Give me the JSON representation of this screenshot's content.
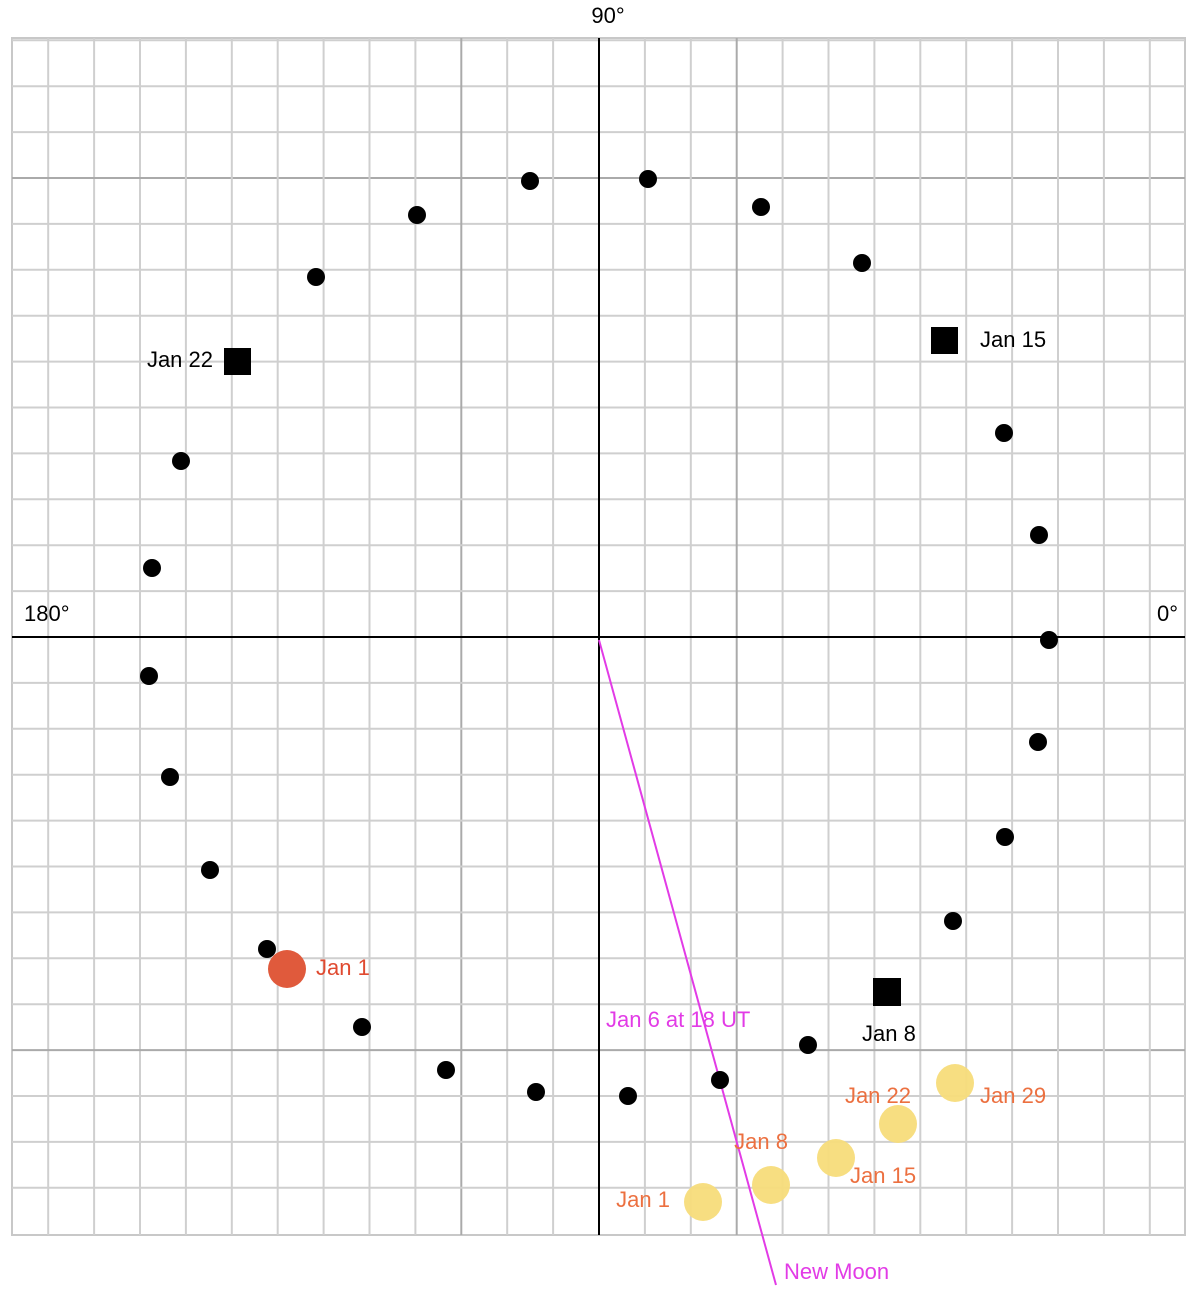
{
  "axes": {
    "top": "90°",
    "left": "180°",
    "right": "0°"
  },
  "moon_markers": [
    {
      "label": "Jan 22"
    },
    {
      "label": "Jan 15"
    },
    {
      "label": "Jan 8"
    }
  ],
  "moon_start": {
    "label": "Jan 1"
  },
  "new_moon": {
    "time": "Jan 6 at 18 UT",
    "label": "New Moon"
  },
  "sun_positions": [
    {
      "label": "Jan 1"
    },
    {
      "label": "Jan 8"
    },
    {
      "label": "Jan 15"
    },
    {
      "label": "Jan 22"
    },
    {
      "label": "Jan 29"
    }
  ]
}
